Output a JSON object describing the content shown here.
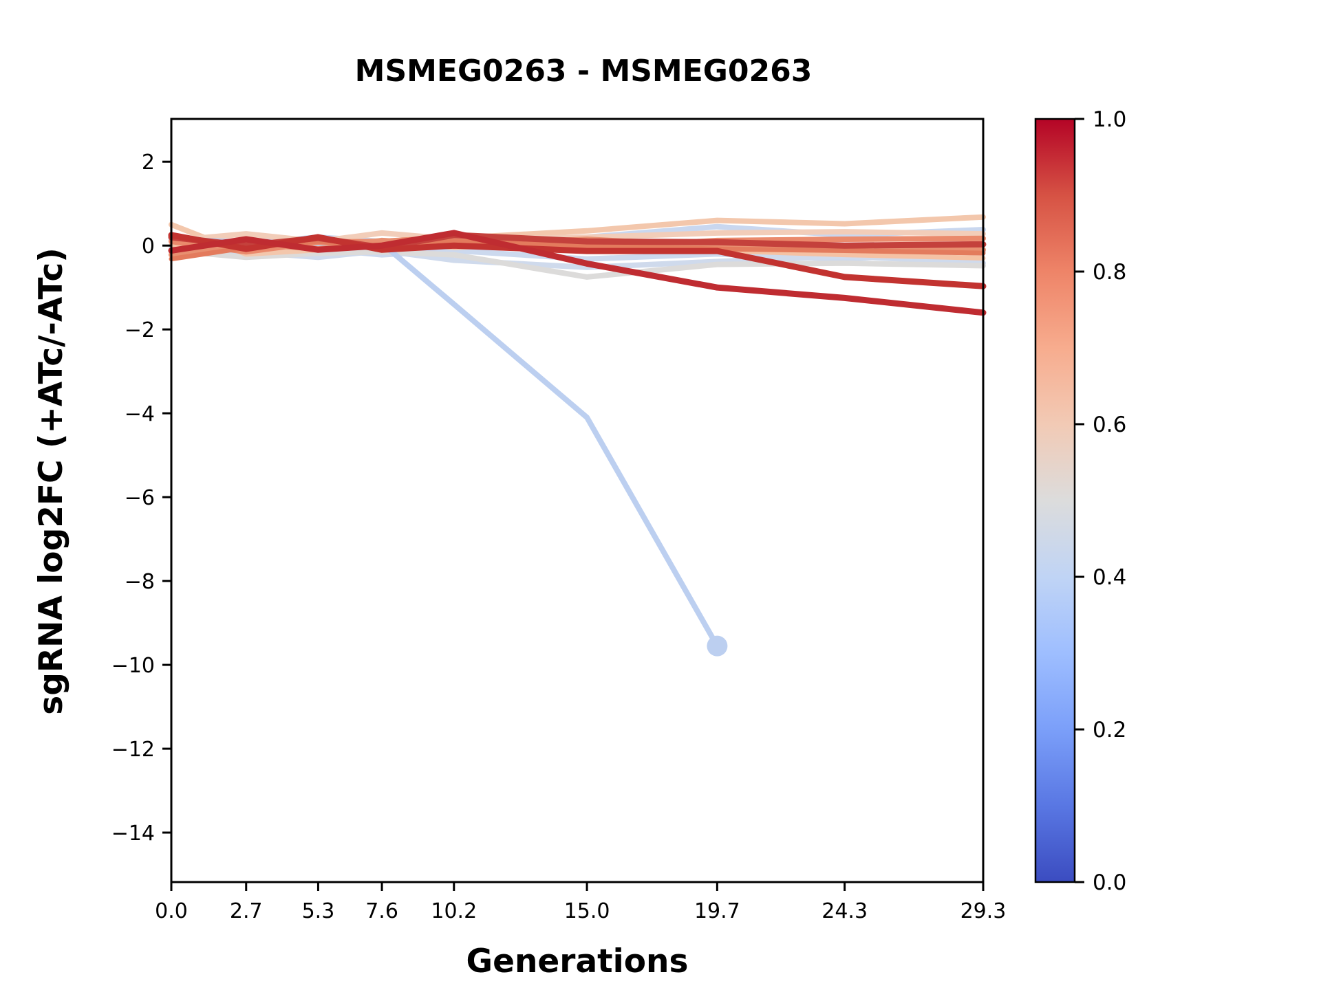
{
  "title": "MSMEG0263 - MSMEG0263",
  "xlabel": "Generations",
  "ylabel": "sgRNA log2FC (+ATc/-ATc)",
  "chart_data": {
    "type": "line",
    "x": [
      0.0,
      2.7,
      5.3,
      7.6,
      10.2,
      15.0,
      19.7,
      24.3,
      29.3
    ],
    "x_tick_labels": [
      "0.0",
      "2.7",
      "5.3",
      "7.6",
      "10.2",
      "15.0",
      "19.7",
      "24.3",
      "29.3"
    ],
    "y_ticks": [
      2,
      0,
      -2,
      -4,
      -6,
      -8,
      -10,
      -12,
      -14
    ],
    "y_tick_labels": [
      "2",
      "0",
      "−2",
      "−4",
      "−6",
      "−8",
      "−10",
      "−12",
      "−14"
    ],
    "xlim": [
      0,
      29.3
    ],
    "ylim": [
      -15.18,
      3.02
    ],
    "grid": false,
    "legend": "none (colorbar encodes sgRNA strength 0-1)",
    "series": [
      {
        "name": "sgrna-lightblue-1",
        "color": "#c9d7ef",
        "colormap_value": 0.43,
        "line_width": 8,
        "values": [
          0.15,
          0.05,
          0.2,
          0.1,
          0.12,
          0.2,
          0.45,
          0.25,
          0.38
        ]
      },
      {
        "name": "sgrna-lightblue-2",
        "color": "#ccd9ee",
        "colormap_value": 0.44,
        "line_width": 8,
        "values": [
          0.0,
          -0.18,
          -0.08,
          -0.22,
          -0.12,
          -0.32,
          -0.2,
          -0.32,
          -0.13
        ]
      },
      {
        "name": "sgrna-lightblue-3",
        "color": "#cfdaec",
        "colormap_value": 0.45,
        "line_width": 8,
        "values": [
          -0.08,
          -0.15,
          -0.28,
          -0.12,
          -0.35,
          -0.52,
          -0.38,
          -0.25,
          -0.42
        ]
      },
      {
        "name": "sgrna-gray",
        "color": "#dcdbda",
        "colormap_value": 0.5,
        "line_width": 8,
        "values": [
          -0.12,
          -0.28,
          -0.18,
          -0.15,
          -0.22,
          -0.75,
          -0.45,
          -0.42,
          -0.48
        ]
      },
      {
        "name": "sgrna-peach-1",
        "color": "#f3c7ac",
        "colormap_value": 0.62,
        "line_width": 8,
        "values": [
          0.5,
          -0.2,
          -0.1,
          0.05,
          0.18,
          0.35,
          0.6,
          0.52,
          0.68
        ]
      },
      {
        "name": "sgrna-peach-2",
        "color": "#f2cdb9",
        "colormap_value": 0.6,
        "line_width": 8,
        "values": [
          0.12,
          0.28,
          0.1,
          0.3,
          0.15,
          0.2,
          0.3,
          0.33,
          0.28
        ]
      },
      {
        "name": "sgrna-peach-3",
        "color": "#f5c2a4",
        "colormap_value": 0.63,
        "line_width": 7,
        "values": [
          0.02,
          -0.1,
          0.05,
          0.12,
          -0.05,
          0.08,
          -0.12,
          -0.22,
          -0.3
        ]
      },
      {
        "name": "sgrna-blue-dropout",
        "color": "#bccff0",
        "colormap_value": 0.38,
        "line_width": 8,
        "marker_end": true,
        "marker_radius": 15,
        "values": [
          0.15,
          0.08,
          -0.05,
          0.05,
          -1.4,
          -4.1,
          -9.55
        ]
      },
      {
        "name": "sgrna-salmon-1",
        "color": "#ea8a6c",
        "colormap_value": 0.78,
        "line_width": 8,
        "values": [
          0.1,
          -0.15,
          0.08,
          0.1,
          0.2,
          -0.05,
          0.12,
          0.15,
          0.17
        ]
      },
      {
        "name": "sgrna-salmon-2",
        "color": "#e89071, ",
        "colormap_value": 0.76,
        "line_width": 8,
        "values": [
          -0.22,
          0.05,
          -0.08,
          0.12,
          0.02,
          0.15,
          -0.02,
          -0.08,
          -0.1
        ]
      },
      {
        "name": "sgrna-salmon-3",
        "color": "#e37b5d",
        "colormap_value": 0.82,
        "line_width": 7,
        "values": [
          -0.32,
          -0.05,
          0.1,
          -0.05,
          0.1,
          0.0,
          -0.08,
          -0.12,
          -0.18
        ]
      },
      {
        "name": "sgrna-darkred-1",
        "color": "#c4413c",
        "colormap_value": 0.9,
        "line_width": 9,
        "values": [
          0.2,
          0.0,
          0.18,
          -0.05,
          0.25,
          0.1,
          0.08,
          0.0,
          0.03
        ]
      },
      {
        "name": "sgrna-darkred-2",
        "color": "#c23330",
        "colormap_value": 0.93,
        "line_width": 9,
        "values": [
          0.25,
          -0.08,
          0.2,
          -0.1,
          0.0,
          -0.13,
          -0.13,
          -0.75,
          -0.97
        ]
      },
      {
        "name": "sgrna-darkred-3",
        "color": "#bf2c31",
        "colormap_value": 0.95,
        "line_width": 9,
        "values": [
          -0.12,
          0.15,
          -0.1,
          0.0,
          0.3,
          -0.43,
          -1.0,
          -1.25,
          -1.6
        ]
      }
    ],
    "colorbar": {
      "orientation": "vertical",
      "colormap": "coolwarm",
      "range": [
        0.0,
        1.0
      ],
      "ticks": [
        {
          "label": "1.0",
          "value": 1.0
        },
        {
          "label": "0.8",
          "value": 0.8
        },
        {
          "label": "0.6",
          "value": 0.6
        },
        {
          "label": "0.4",
          "value": 0.4
        },
        {
          "label": "0.2",
          "value": 0.2
        },
        {
          "label": "0.0",
          "value": 0.0
        }
      ],
      "gradient_bottom_to_top": [
        "#3b4cc0",
        "#5977e3",
        "#7b9ff9",
        "#9ebeff",
        "#c0d4f5",
        "#dcdcdc",
        "#f2cab5",
        "#f7ac8e",
        "#ee8468",
        "#d65244",
        "#b40426"
      ]
    }
  }
}
